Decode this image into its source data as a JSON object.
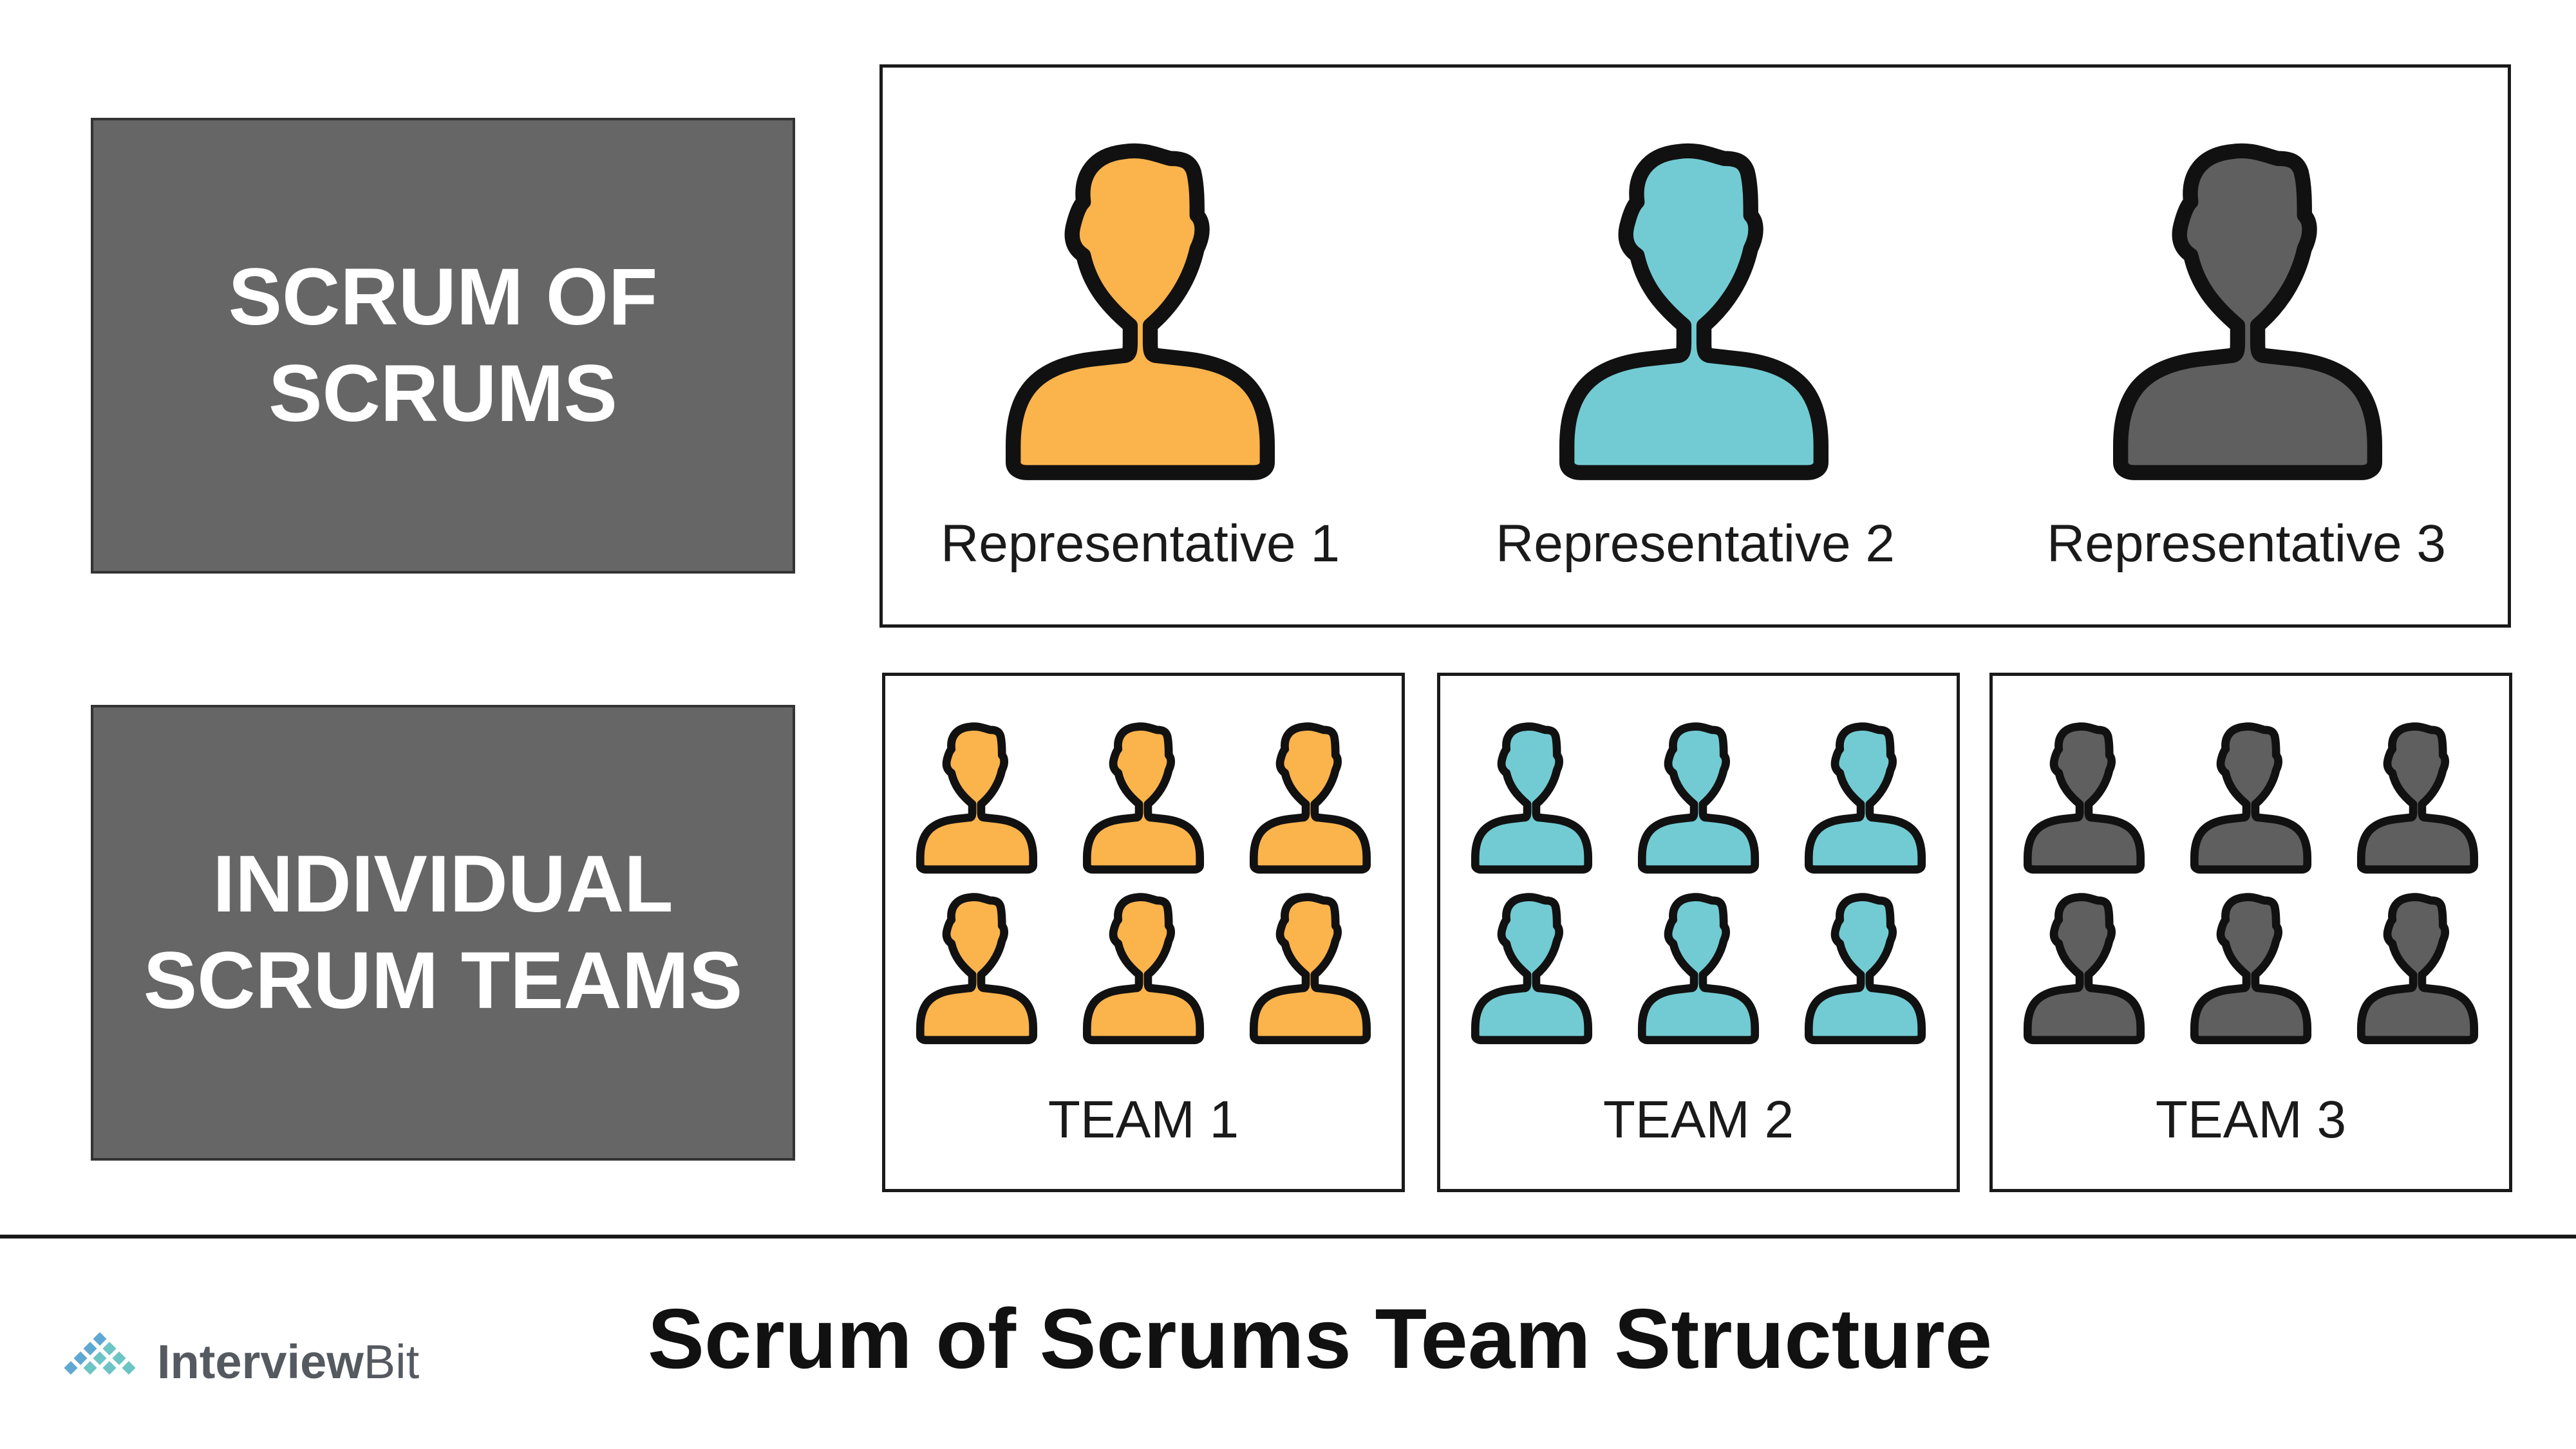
{
  "left_labels": {
    "scrum_of_scrums": [
      "SCRUM OF",
      "SCRUMS"
    ],
    "individual_teams": [
      "INDIVIDUAL",
      "SCRUM TEAMS"
    ]
  },
  "representatives": [
    {
      "label": "Representative 1",
      "color": "#FBB34C"
    },
    {
      "label": "Representative 2",
      "color": "#72CBD2"
    },
    {
      "label": "Representative 3",
      "color": "#5F5F5F"
    }
  ],
  "teams": [
    {
      "label": "TEAM 1",
      "color": "#FBB34C",
      "members": 6
    },
    {
      "label": "TEAM 2",
      "color": "#72CBD2",
      "members": 6
    },
    {
      "label": "TEAM 3",
      "color": "#5F5F5F",
      "members": 6
    }
  ],
  "footer": {
    "title": "Scrum of Scrums Team Structure",
    "logo_text_a": "Interview",
    "logo_text_b": "Bit"
  },
  "colors": {
    "label_box_bg": "#666666",
    "outline": "#111111",
    "logo_blue": "#5FA8D3",
    "logo_teal": "#6CC4C4"
  }
}
